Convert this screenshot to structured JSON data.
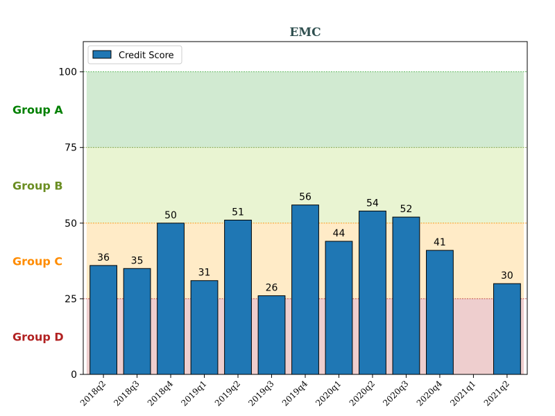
{
  "chart_data": {
    "type": "bar",
    "title": "EMC",
    "xlabel": "",
    "ylabel": "",
    "categories": [
      "2018q2",
      "2018q3",
      "2018q4",
      "2019q1",
      "2019q2",
      "2019q3",
      "2019q4",
      "2020q1",
      "2020q2",
      "2020q3",
      "2020q4",
      "2021q1",
      "2021q2"
    ],
    "series": [
      {
        "name": "Credit Score",
        "values": [
          36,
          35,
          50,
          31,
          51,
          26,
          56,
          44,
          54,
          52,
          41,
          null,
          30
        ],
        "color": "#1f77b4"
      }
    ],
    "ylim": [
      0,
      110
    ],
    "yticks": [
      0,
      25,
      50,
      75,
      100
    ],
    "legend": "top-left",
    "grid": false,
    "bands": [
      {
        "label": "Group A",
        "from": 75,
        "to": 100,
        "color": "#2ca02c",
        "label_color": "#008000"
      },
      {
        "label": "Group B",
        "from": 50,
        "to": 75,
        "color": "#9acd32",
        "label_color": "#6b8e23"
      },
      {
        "label": "Group C",
        "from": 25,
        "to": 50,
        "color": "#ffa500",
        "label_color": "#ff8c00"
      },
      {
        "label": "Group D",
        "from": 0,
        "to": 25,
        "color": "#b22222",
        "label_color": "#b22222"
      }
    ],
    "band_lines": [
      {
        "value": 100,
        "color": "#2ca02c"
      },
      {
        "value": 75,
        "color": "#6b8e23"
      },
      {
        "value": 50,
        "color": "#ff8c00"
      },
      {
        "value": 25,
        "color": "#b22222"
      }
    ]
  }
}
